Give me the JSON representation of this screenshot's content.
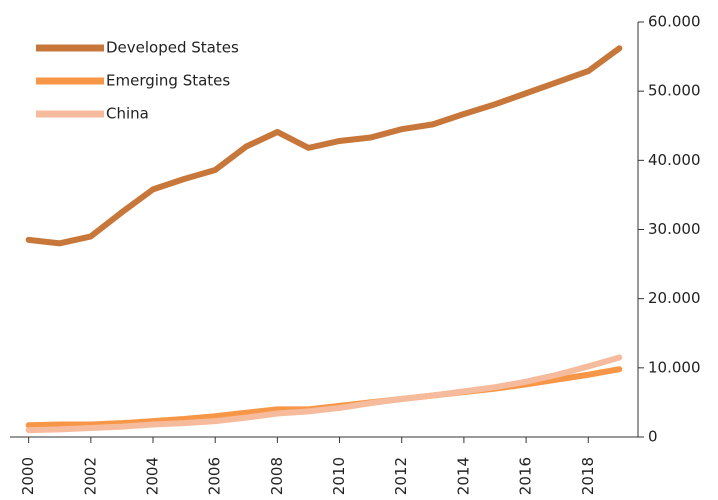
{
  "chart_data": {
    "type": "line",
    "x": [
      2000,
      2001,
      2002,
      2003,
      2004,
      2005,
      2006,
      2007,
      2008,
      2009,
      2010,
      2011,
      2012,
      2013,
      2014,
      2015,
      2016,
      2017,
      2018,
      2019
    ],
    "xlim": [
      1999.4,
      2019.6
    ],
    "xticks": [
      2000,
      2002,
      2004,
      2006,
      2008,
      2010,
      2012,
      2014,
      2016,
      2018
    ],
    "ylim": [
      0,
      60000
    ],
    "yticks": [
      0,
      {
        "value": 10000,
        "label": "10.000"
      },
      {
        "value": 20000,
        "label": "20.000"
      },
      {
        "value": 30000,
        "label": "30.000"
      },
      {
        "value": 40000,
        "label": "40.000"
      },
      {
        "value": 50000,
        "label": "50.000"
      },
      {
        "value": 60000,
        "label": "60.000"
      }
    ],
    "legend": "upper left",
    "series": [
      {
        "name": "Developed States",
        "color": "#c8773b",
        "values": [
          28500,
          28000,
          29000,
          32500,
          35800,
          37300,
          38600,
          42000,
          44100,
          41800,
          42800,
          43300,
          44500,
          45200,
          46700,
          48100,
          49700,
          51300,
          52900,
          56200
        ]
      },
      {
        "name": "Emerging States",
        "color": "#f79646",
        "values": [
          1700,
          1800,
          1800,
          2000,
          2300,
          2600,
          3000,
          3500,
          4000,
          4000,
          4500,
          5000,
          5500,
          6000,
          6500,
          7000,
          7600,
          8300,
          9000,
          9800
        ]
      },
      {
        "name": "China",
        "color": "#f6bb9c",
        "values": [
          1000,
          1100,
          1300,
          1500,
          1800,
          2000,
          2300,
          2800,
          3400,
          3700,
          4200,
          4900,
          5500,
          6000,
          6600,
          7200,
          8000,
          9000,
          10200,
          11500
        ]
      }
    ]
  }
}
